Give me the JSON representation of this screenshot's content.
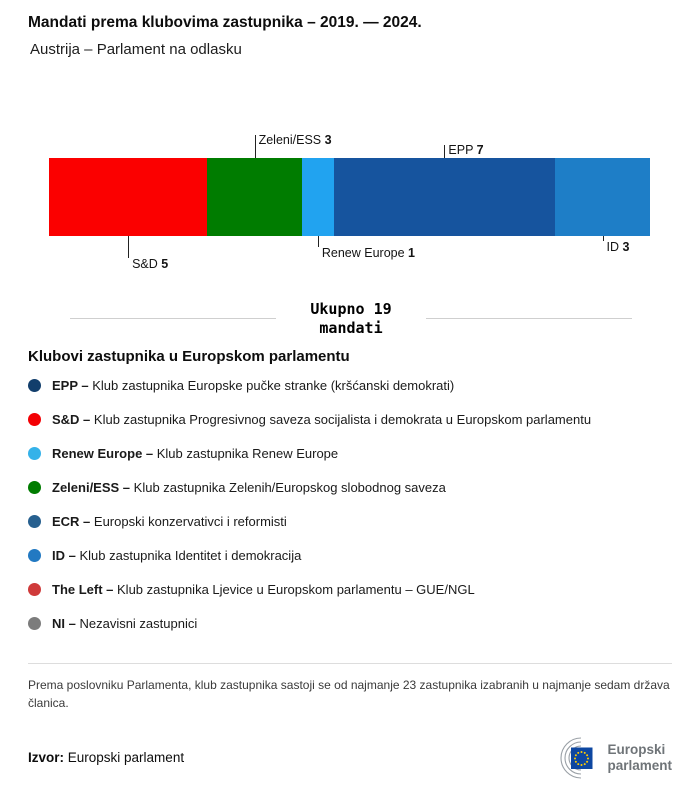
{
  "header": {
    "title": "Mandati prema klubovima zastupnika – 2019. — 2024.",
    "subtitle": "Austrija – Parlament na odlasku"
  },
  "chart_data": {
    "type": "bar",
    "orientation": "horizontal-stacked",
    "title": "Mandati prema klubovima zastupnika – 2019. — 2024.",
    "total": 19,
    "total_label_line1": "Ukupno 19",
    "total_label_line2": "mandati",
    "categories": [
      "S&D",
      "Zeleni/ESS",
      "Renew Europe",
      "EPP",
      "ID"
    ],
    "values": [
      5,
      3,
      1,
      7,
      3
    ],
    "segments": [
      {
        "name": "S&D",
        "value": 5,
        "color": "#fb0000",
        "callout_side": "below",
        "tick": 22
      },
      {
        "name": "Zeleni/ESS",
        "value": 3,
        "color": "#007c00",
        "callout_side": "above",
        "tick": 23
      },
      {
        "name": "Renew Europe",
        "value": 1,
        "color": "#21a3f0",
        "callout_side": "below",
        "tick": 11
      },
      {
        "name": "EPP",
        "value": 7,
        "color": "#16549e",
        "callout_side": "above",
        "tick": 13
      },
      {
        "name": "ID",
        "value": 3,
        "color": "#1e7ec7",
        "callout_side": "below",
        "tick": 5
      }
    ]
  },
  "legend": {
    "title": "Klubovi zastupnika u Europskom parlamentu",
    "items": [
      {
        "abbr": "EPP –",
        "desc": "Klub zastupnika Europske pučke stranke (kršćanski demokrati)",
        "color": "#123e6c"
      },
      {
        "abbr": "S&D –",
        "desc": "Klub zastupnika Progresivnog saveza socijalista i demokrata u Europskom parlamentu",
        "color": "#f30004"
      },
      {
        "abbr": "Renew Europe –",
        "desc": "Klub zastupnika Renew Europe",
        "color": "#35b2e9"
      },
      {
        "abbr": "Zeleni/ESS –",
        "desc": "Klub zastupnika Zelenih/Europskog slobodnog saveza",
        "color": "#007c00"
      },
      {
        "abbr": "ECR –",
        "desc": "Europski konzervativci i reformisti",
        "color": "#27608f"
      },
      {
        "abbr": "ID –",
        "desc": "Klub zastupnika Identitet i demokracija",
        "color": "#2279c2"
      },
      {
        "abbr": "The Left –",
        "desc": "Klub zastupnika Ljevice u Europskom parlamentu – GUE/NGL",
        "color": "#cf3a3a"
      },
      {
        "abbr": "NI –",
        "desc": "Nezavisni zastupnici",
        "color": "#7c7c7c"
      }
    ]
  },
  "footer": {
    "note": "Prema poslovniku Parlamenta, klub zastupnika sastoji se od najmanje 23 zastupnika izabranih u najmanje sedam država članica.",
    "source_label": "Izvor:",
    "source_text": " Europski parlament",
    "logo_line1": "Europski",
    "logo_line2": "parlament"
  }
}
